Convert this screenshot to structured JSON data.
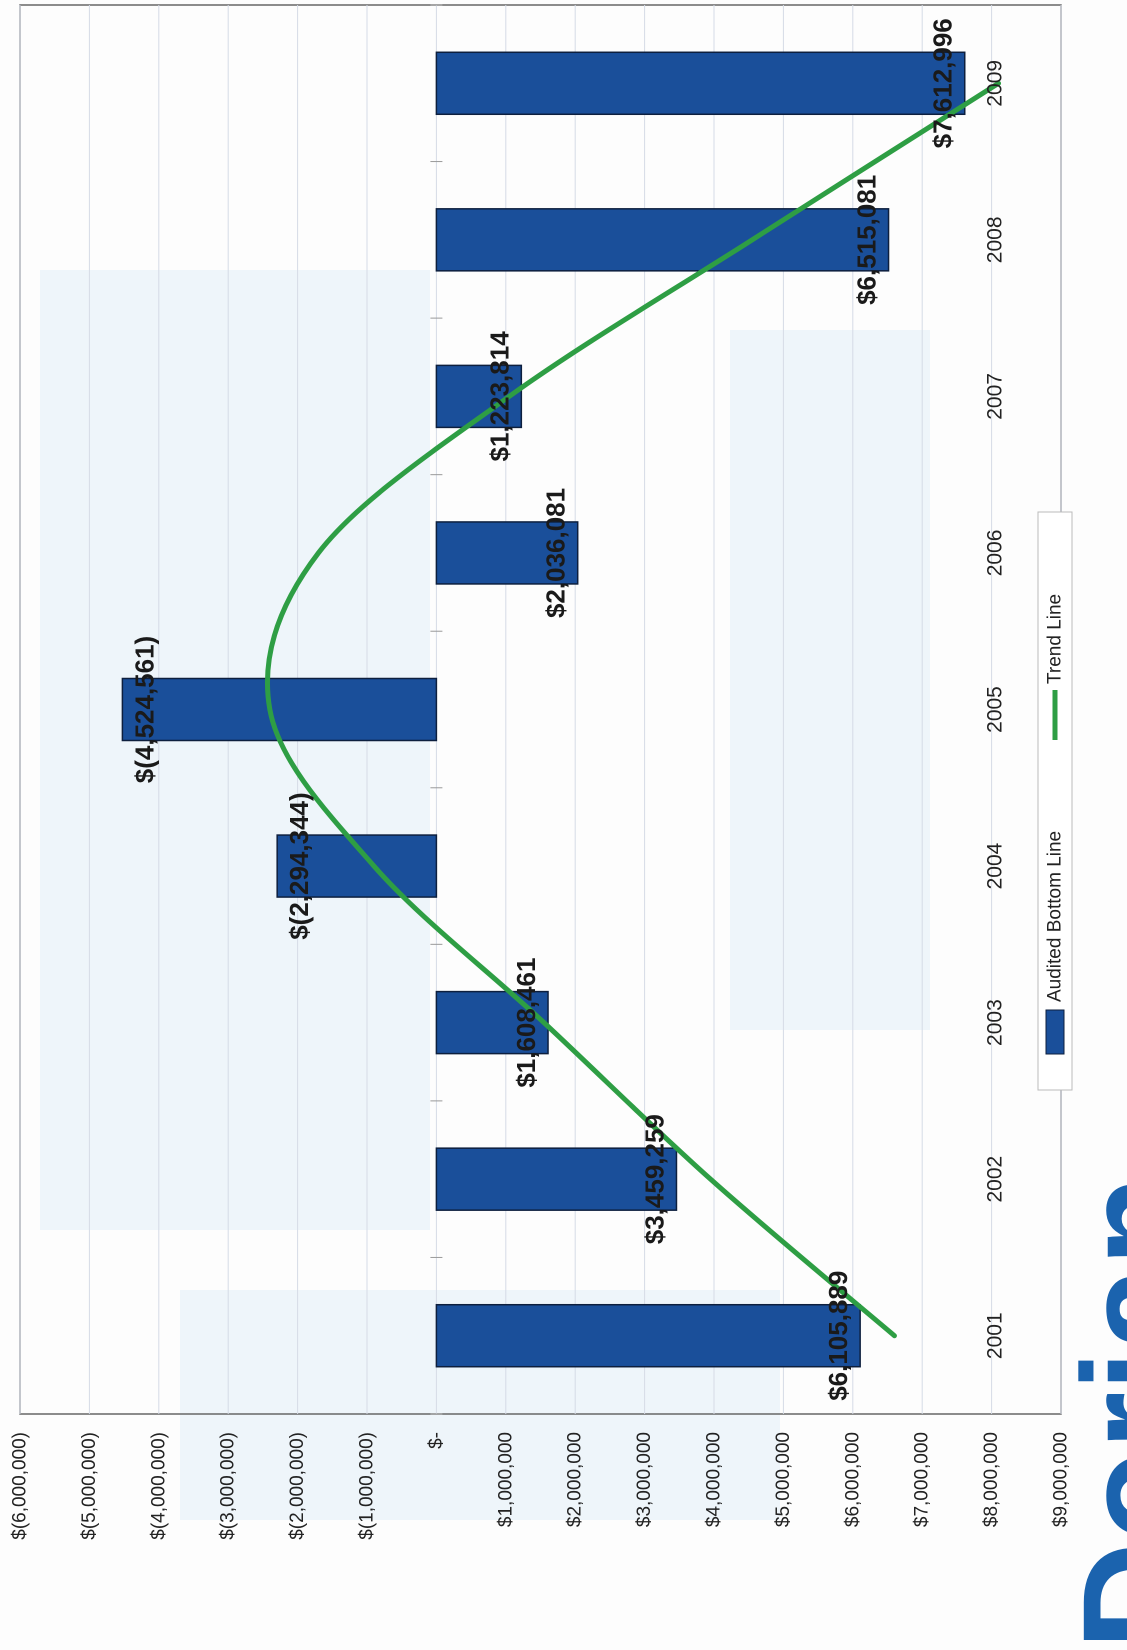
{
  "chart_data": {
    "type": "bar",
    "orientation": "horizontal",
    "categories": [
      "2001",
      "2002",
      "2003",
      "2004",
      "2005",
      "2006",
      "2007",
      "2008",
      "2009"
    ],
    "series": [
      {
        "name": "Audited Bottom Line",
        "type": "bar",
        "color": "#1a4f9a",
        "values": [
          6105889,
          3459259,
          1608461,
          -2294344,
          -4524561,
          2036081,
          1223814,
          6515081,
          7612996
        ],
        "labels": [
          "$6,105,889",
          "$3,459,259",
          "$1,608,461",
          "$(2,294,344)",
          "$(4,524,561)",
          "$2,036,081",
          "$1,223,814",
          "$6,515,081",
          "$7,612,996"
        ]
      },
      {
        "name": "Trend Line",
        "type": "line",
        "color": "#2e9e44",
        "values": [
          6600000,
          3950000,
          1550000,
          -900000,
          -2400000,
          -1700000,
          1050000,
          4550000,
          8100000
        ]
      }
    ],
    "ylim": [
      -6000000,
      9000000
    ],
    "ytick_values": [
      9000000,
      8000000,
      7000000,
      6000000,
      5000000,
      4000000,
      3000000,
      2000000,
      1000000,
      0,
      -1000000,
      -2000000,
      -3000000,
      -4000000,
      -5000000,
      -6000000
    ],
    "ytick_labels": [
      "$9,000,000",
      "$8,000,000",
      "$7,000,000",
      "$6,000,000",
      "$5,000,000",
      "$4,000,000",
      "$3,000,000",
      "$2,000,000",
      "$1,000,000",
      "$-",
      "$(1,000,000)",
      "$(2,000,000)",
      "$(3,000,000)",
      "$(4,000,000)",
      "$(5,000,000)",
      "$(6,000,000)"
    ],
    "grid": true,
    "legend": "bottom",
    "title": "",
    "xlabel": "",
    "ylabel": ""
  },
  "watermark": {
    "text": "Dorian",
    "color": "#1b63ae"
  }
}
